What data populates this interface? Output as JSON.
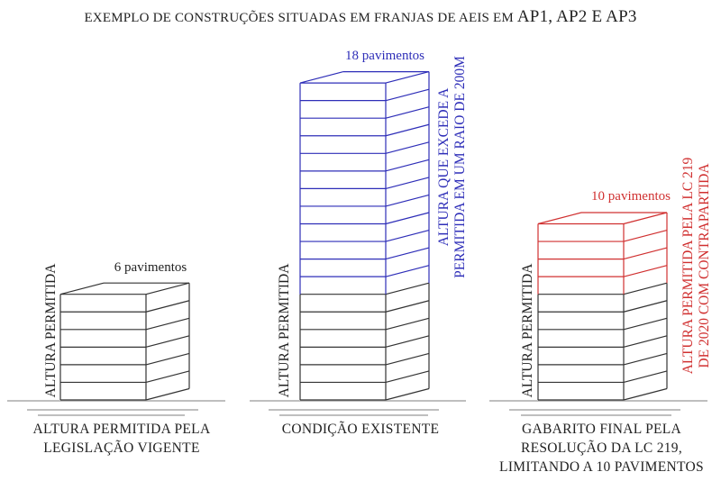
{
  "title": {
    "main": "EXEMPLO DE CONSTRUÇÕES SITUADAS EM FRANJAS DE AEIS EM",
    "areas": "AP1, AP2 E AP3"
  },
  "colors": {
    "existing": "#2e2eb8",
    "proposed": "#d03030",
    "base": "#333333",
    "ground": "#aaaaaa"
  },
  "buildings": [
    {
      "id": "legislacao-vigente",
      "floors_label": "6 pavimentos",
      "floors": 6,
      "permitted_floors": 6,
      "side_label": "ALTURA PERMITIDA",
      "caption_lines": [
        "ALTURA PERMITIDA PELA",
        "LEGISLAÇÃO VIGENTE"
      ]
    },
    {
      "id": "condicao-existente",
      "floors_label": "18 pavimentos",
      "floors": 18,
      "permitted_floors": 6,
      "side_label": "ALTURA PERMITIDA",
      "excess_label_lines": [
        "ALTURA QUE EXCEDE A",
        "PERMITIDA EM UM RAIO DE 200M"
      ],
      "caption_lines": [
        "CONDIÇÃO EXISTENTE"
      ]
    },
    {
      "id": "gabarito-final",
      "floors_label": "10 pavimentos",
      "floors": 10,
      "permitted_floors": 6,
      "side_label": "ALTURA PERMITIDA",
      "excess_label_lines": [
        "ALTURA PERMITIDA PELA LC 219",
        "DE 2020 COM CONTRAPARTIDA"
      ],
      "caption_lines": [
        "GABARITO FINAL PELA",
        "RESOLUÇÃO DA LC 219,",
        "LIMITANDO A 10 PAVIMENTOS"
      ]
    }
  ]
}
